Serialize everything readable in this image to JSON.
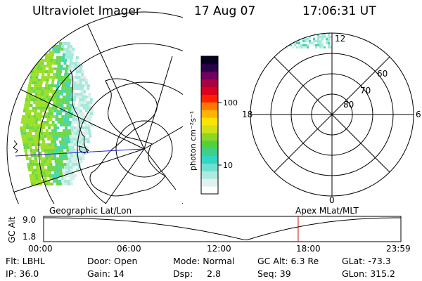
{
  "header": {
    "title": "Ultraviolet Imager",
    "date": "17 Aug 07",
    "time": "17:06:31 UT"
  },
  "colorbar": {
    "label": "photon cm⁻²s⁻¹",
    "ticks": [
      "100",
      "10"
    ],
    "colors": [
      "#ffffff",
      "#dff2ee",
      "#b0e9e2",
      "#6fe0d0",
      "#33d6c4",
      "#3cd18a",
      "#52d13f",
      "#8fd624",
      "#d0e01a",
      "#ffe300",
      "#ffb400",
      "#ff7800",
      "#ff2000",
      "#d8001a",
      "#a80040",
      "#70005c",
      "#2a004a",
      "#050020"
    ]
  },
  "geo_map": {
    "title": "Geographic Lat/Lon",
    "aurora_colors": [
      "#d8efe9",
      "#a6e9dc",
      "#46d6b2",
      "#6cd84a",
      "#9be028"
    ]
  },
  "polar_map": {
    "title": "Apex MLat/MLT",
    "mlt_labels": {
      "top": "12",
      "left": "18",
      "right": "6",
      "bottom": "0"
    },
    "mlat_labels": [
      "60",
      "70",
      "80"
    ]
  },
  "orbit_plot": {
    "ylabel": "GC Alt",
    "y_ticks": [
      "9.0",
      "1.8"
    ],
    "x_ticks": [
      "00:00",
      "06:00",
      "12:00",
      "18:00",
      "23:59"
    ],
    "current_marker_hours": 17.1,
    "marker_color": "#cc0000"
  },
  "status": {
    "flt_label": "Flt:",
    "flt_value": "LBHL",
    "ip_label": "IP:",
    "ip_value": "36.0",
    "door_label": "Door:",
    "door_value": "Open",
    "gain_label": "Gain:",
    "gain_value": "14",
    "mode_label": "Mode:",
    "mode_value": "Normal",
    "dsp_label": "Dsp:",
    "dsp_value": "2.8",
    "gcalt_label": "GC Alt:",
    "gcalt_value": "6.3 Re",
    "seq_label": "Seq:",
    "seq_value": "39",
    "glat_label": "GLat:",
    "glat_value": "-73.3",
    "glon_label": "GLon:",
    "glon_value": "315.2"
  }
}
